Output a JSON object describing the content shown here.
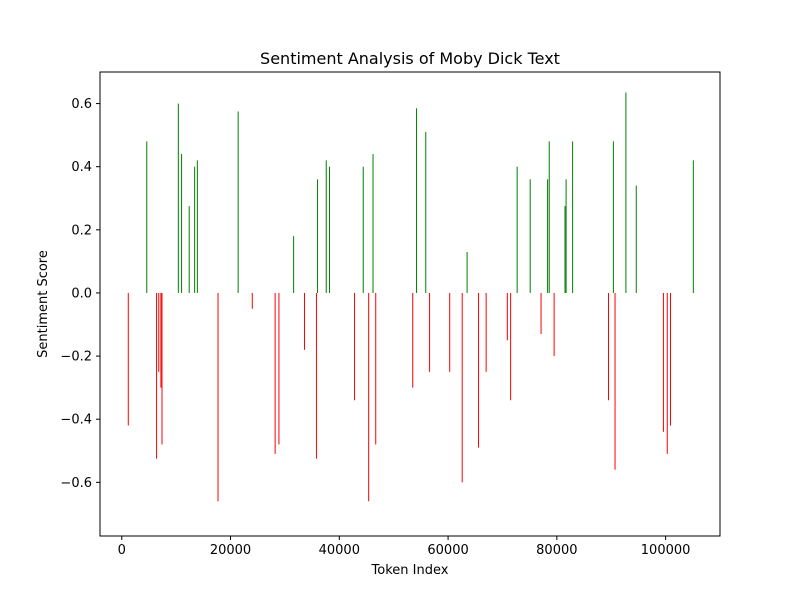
{
  "chart_data": {
    "type": "bar",
    "title": "Sentiment Analysis of Moby Dick Text",
    "xlabel": "Token Index",
    "ylabel": "Sentiment Score",
    "xlim": [
      -4000,
      110000
    ],
    "ylim": [
      -0.77,
      0.7
    ],
    "xticks": [
      0,
      20000,
      40000,
      60000,
      80000,
      100000
    ],
    "yticks": [
      -0.6,
      -0.4,
      -0.2,
      0.0,
      0.2,
      0.4,
      0.6
    ],
    "ytick_labels": [
      "−0.6",
      "−0.4",
      "−0.2",
      "0.0",
      "0.2",
      "0.4",
      "0.6"
    ],
    "grid": false,
    "colors": {
      "positive": "#008000",
      "negative": "#ff0000"
    },
    "series": [
      {
        "x": [
          1200,
          4600,
          6400,
          6800,
          7200,
          7400,
          10400,
          11000,
          12400,
          13400,
          13900,
          17700,
          21400,
          24000,
          28200,
          28900,
          31600,
          33600,
          35800,
          36000,
          37600,
          38200,
          42800,
          44400,
          45400,
          46200,
          46700,
          53500,
          54200,
          55900,
          56600,
          60300,
          62600,
          63500,
          65600,
          67000,
          70900,
          71500,
          72700,
          75100,
          77100,
          78300,
          78600,
          79500,
          81500,
          81700,
          82900,
          89500,
          90400,
          90700,
          92700,
          94600,
          99600,
          100300,
          100900,
          105100
        ],
        "values": [
          -0.42,
          0.48,
          -0.525,
          -0.25,
          -0.3,
          -0.48,
          0.6,
          0.44,
          0.275,
          0.4,
          0.42,
          -0.66,
          0.575,
          -0.05,
          -0.51,
          -0.48,
          0.18,
          -0.18,
          -0.525,
          0.36,
          0.42,
          0.4,
          -0.34,
          0.4,
          -0.66,
          0.44,
          -0.48,
          -0.3,
          0.585,
          0.51,
          -0.25,
          -0.25,
          -0.6,
          0.13,
          -0.49,
          -0.25,
          -0.15,
          -0.34,
          0.4,
          0.36,
          -0.13,
          0.36,
          0.48,
          -0.2,
          0.275,
          0.36,
          0.48,
          -0.34,
          0.48,
          -0.56,
          0.635,
          0.34,
          -0.44,
          -0.51,
          -0.42,
          0.42
        ]
      }
    ]
  }
}
